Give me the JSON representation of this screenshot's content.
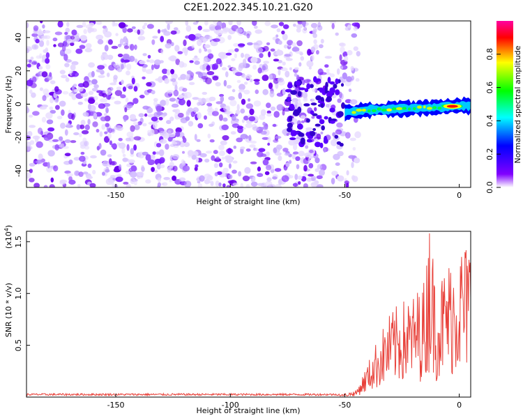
{
  "chart_data": [
    {
      "type": "heatmap",
      "title": "C2E1.2022.345.10.21.G20",
      "xlabel": "Height of straight line (km)",
      "ylabel": "Frequency (Hz)",
      "xlim": [
        -189,
        5
      ],
      "ylim": [
        -50,
        50
      ],
      "x_ticks": [
        -150,
        -100,
        -50,
        0
      ],
      "y_ticks": [
        -40,
        -20,
        0,
        20,
        40
      ],
      "noise_region_x": [
        -189,
        -50
      ],
      "signal_track": [
        {
          "x": -50,
          "y": -5
        },
        {
          "x": -40,
          "y": -3.5
        },
        {
          "x": -30,
          "y": -3
        },
        {
          "x": -20,
          "y": -2.5
        },
        {
          "x": -10,
          "y": -2
        },
        {
          "x": 0,
          "y": -1
        }
      ],
      "colorbar": {
        "label": "Normalized spectral amplitude",
        "range": [
          0,
          1
        ],
        "ticks": [
          "0.0",
          "0.2",
          "0.4",
          "0.6",
          "0.8"
        ],
        "colors": [
          "#ffffff",
          "#8000ff",
          "#0000ff",
          "#00ffff",
          "#00ff00",
          "#ffff00",
          "#ff0000",
          "#ff00a0"
        ]
      }
    },
    {
      "type": "line",
      "xlabel": "Height of straight line (km)",
      "ylabel": "SNR (10 * v/v)",
      "y_multiplier": "(x10",
      "y_multiplier_exp": "4",
      "y_multiplier_close": ")",
      "xlim": [
        -189,
        5
      ],
      "ylim": [
        0,
        1.6
      ],
      "x_ticks": [
        -150,
        -100,
        -50,
        0
      ],
      "y_ticks": [
        "0.5",
        "1.0",
        "1.5"
      ],
      "y_tick_values": [
        0.5,
        1.0,
        1.5
      ],
      "color": "#e8413a",
      "envelope": [
        {
          "x": -189,
          "y": 0.02
        },
        {
          "x": -52,
          "y": 0.02
        },
        {
          "x": -45,
          "y": 0.06
        },
        {
          "x": -40,
          "y": 0.3
        },
        {
          "x": -35,
          "y": 0.55
        },
        {
          "x": -30,
          "y": 0.75
        },
        {
          "x": -25,
          "y": 0.85
        },
        {
          "x": -20,
          "y": 0.9
        },
        {
          "x": -15,
          "y": 1.05
        },
        {
          "x": -13,
          "y": 1.58
        },
        {
          "x": -10,
          "y": 1.0
        },
        {
          "x": -5,
          "y": 1.2
        },
        {
          "x": 0,
          "y": 1.35
        },
        {
          "x": 5,
          "y": 1.4
        }
      ]
    }
  ]
}
